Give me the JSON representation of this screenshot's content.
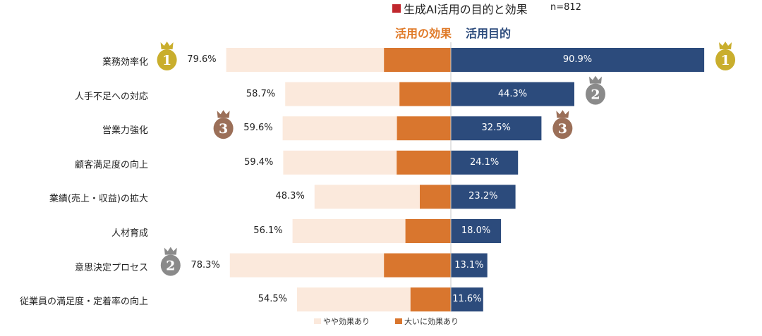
{
  "title": "生成AI活用の目的と効果",
  "n_label": "n=812",
  "colors": {
    "title_mark": "#c0272d",
    "effect_header": "#e07b2a",
    "purpose_header": "#2c4b7c",
    "light": "#fbe9dc",
    "orange": "#d9762e",
    "navy": "#2c4b7c",
    "gold": "#c9ae2d",
    "silver": "#8a8a8a",
    "bronze": "#9b6f58",
    "divider": "#c9c9c9"
  },
  "chart_data": {
    "type": "bar",
    "layout": "diverging",
    "left_header": "活用の効果",
    "right_header": "活用目的",
    "categories": [
      "業務効率化",
      "人手不足への対応",
      "営業力強化",
      "顧客満足度の向上",
      "業績(売上・収益)の拡大",
      "人材育成",
      "意思決定プロセス",
      "従業員の満足度・定着率の向上"
    ],
    "effect_total": [
      79.6,
      58.7,
      59.6,
      59.4,
      48.3,
      56.1,
      78.3,
      54.5
    ],
    "effect_total_labels": [
      "79.6%",
      "58.7%",
      "59.6%",
      "59.4%",
      "48.3%",
      "56.1%",
      "78.3%",
      "54.5%"
    ],
    "series": [
      {
        "name": "やや効果あり",
        "values": [
          55.9,
          40.5,
          40.5,
          40.2,
          37.3,
          40.0,
          54.6,
          40.2
        ]
      },
      {
        "name": "大いに効果あり",
        "values": [
          23.7,
          18.2,
          19.1,
          19.2,
          11.0,
          16.1,
          23.7,
          14.3
        ]
      }
    ],
    "purpose": [
      90.9,
      44.3,
      32.5,
      24.1,
      23.2,
      18.0,
      13.1,
      11.6
    ],
    "purpose_labels": [
      "90.9%",
      "44.3%",
      "32.5%",
      "24.1%",
      "23.2%",
      "18.0%",
      "13.1%",
      "11.6%"
    ],
    "effect_rank_medals": [
      {
        "category_index": 0,
        "rank": "1",
        "tier": "gold"
      },
      {
        "category_index": 6,
        "rank": "2",
        "tier": "silver"
      },
      {
        "category_index": 2,
        "rank": "3",
        "tier": "bronze"
      }
    ],
    "purpose_rank_medals": [
      {
        "category_index": 0,
        "rank": "1",
        "tier": "gold"
      },
      {
        "category_index": 1,
        "rank": "2",
        "tier": "silver"
      },
      {
        "category_index": 2,
        "rank": "3",
        "tier": "bronze"
      }
    ],
    "legend": [
      "やや効果あり",
      "大いに効果あり"
    ],
    "legend_position": "bottom"
  }
}
